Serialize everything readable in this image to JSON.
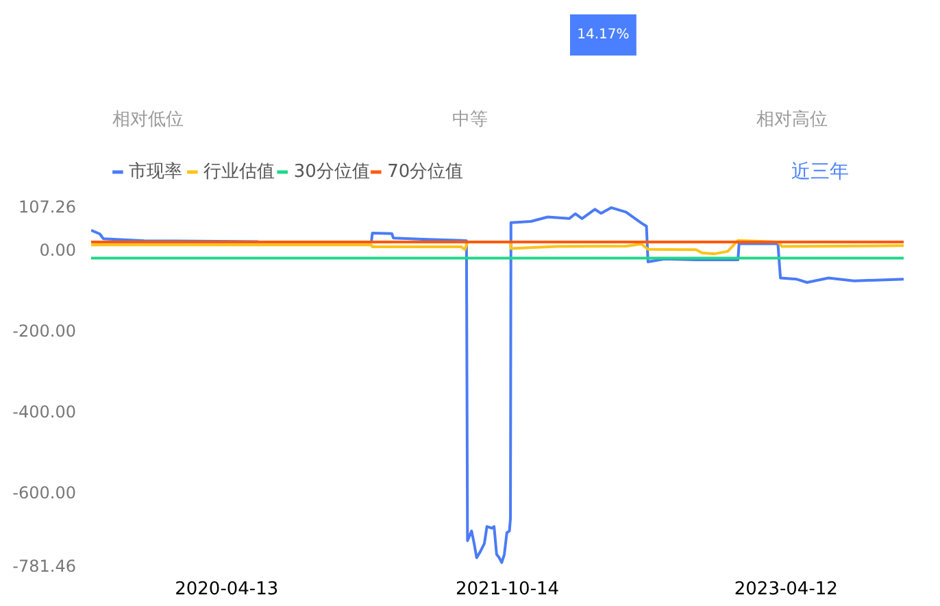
{
  "chart_data": {
    "type": "line",
    "annotations": [
      "14.17%",
      "相对低位",
      "中等",
      "相对高位",
      "近三年"
    ],
    "legend": "top left",
    "grid": false,
    "marker": "none",
    "line_style": "solid",
    "ylim": [
      -781.46,
      107.26
    ],
    "yticks": [
      {
        "value": 107.26,
        "label": "107.26"
      },
      {
        "value": 0,
        "label": "0.00"
      },
      {
        "value": -200,
        "label": "-200.00"
      },
      {
        "value": -400,
        "label": "-400.00"
      },
      {
        "value": -600,
        "label": "-600.00"
      },
      {
        "value": -781.46,
        "label": "-781.46"
      }
    ],
    "xlim": [
      "2019-07-23",
      "2023-11-28"
    ],
    "xticks": [
      {
        "value": "2020-04-13",
        "label": "2020-04-13"
      },
      {
        "value": "2021-10-14",
        "label": "2021-10-14"
      },
      {
        "value": "2023-04-12",
        "label": "2023-04-12"
      }
    ],
    "series": [
      {
        "name": "市现率",
        "color": "#4b7bf5",
        "x": [
          "2019-07-23",
          "2019-08-09",
          "2019-08-16",
          "2019-11-04",
          "2020-06-14",
          "2020-10-16",
          "2021-01-21",
          "2021-01-23",
          "2021-03-02",
          "2021-03-05",
          "2021-05-03",
          "2021-07-16",
          "2021-07-26",
          "2021-07-28",
          "2021-08-05",
          "2021-08-10",
          "2021-08-15",
          "2021-08-22",
          "2021-08-30",
          "2021-09-04",
          "2021-09-14",
          "2021-09-18",
          "2021-09-23",
          "2021-09-28",
          "2021-10-03",
          "2021-10-08",
          "2021-10-13",
          "2021-10-18",
          "2021-10-20",
          "2021-10-21",
          "2021-11-29",
          "2022-01-01",
          "2022-02-12",
          "2022-02-24",
          "2022-03-09",
          "2022-04-03",
          "2022-04-15",
          "2022-05-05",
          "2022-06-03",
          "2022-07-03",
          "2022-07-13",
          "2022-07-16",
          "2022-08-17",
          "2022-10-18",
          "2023-01-08",
          "2023-01-10",
          "2023-03-27",
          "2023-04-01",
          "2023-05-03",
          "2023-05-23",
          "2023-07-04",
          "2023-08-23",
          "2023-10-12",
          "2023-11-28"
        ],
        "values": [
          48,
          39,
          27,
          22,
          20,
          null,
          19,
          41,
          40,
          29,
          26,
          23,
          22,
          -720,
          -696,
          -727,
          -762,
          -747,
          -727,
          -685,
          -689,
          -685,
          -754,
          -762,
          -774,
          -754,
          -700,
          -696,
          -665,
          67,
          70,
          81,
          77,
          89,
          77,
          100,
          90,
          104,
          93,
          66,
          58,
          -30,
          -23,
          -25,
          -25,
          15,
          15,
          -70,
          -73,
          -81,
          -70,
          -77,
          -75,
          -73
        ]
      },
      {
        "name": "行业估值",
        "color": "#ffc21a",
        "x": [
          "2019-07-23",
          "2021-01-21",
          "2021-01-23",
          "2021-07-16",
          "2021-07-23",
          "2021-07-28",
          "2021-10-20",
          "2021-10-21",
          "2022-01-18",
          "2022-06-03",
          "2022-07-03",
          "2022-07-16",
          "2022-10-18",
          "2022-10-30",
          "2022-11-24",
          "2022-12-19",
          "2023-01-08",
          "2023-03-27",
          "2023-04-04",
          "2023-11-28"
        ],
        "values": [
          12,
          12,
          7,
          7,
          0,
          19,
          19,
          3,
          8,
          9,
          14,
          1,
          0,
          -8,
          -10,
          -4,
          23,
          19,
          8,
          10
        ]
      },
      {
        "name": "30分位值",
        "color": "#1fd88a",
        "x": [
          "2019-07-23",
          "2023-11-28"
        ],
        "values": [
          -21,
          -21
        ]
      },
      {
        "name": "70分位值",
        "color": "#ff5a0a",
        "x": [
          "2019-07-23",
          "2023-11-28"
        ],
        "values": [
          19,
          19
        ]
      }
    ]
  }
}
